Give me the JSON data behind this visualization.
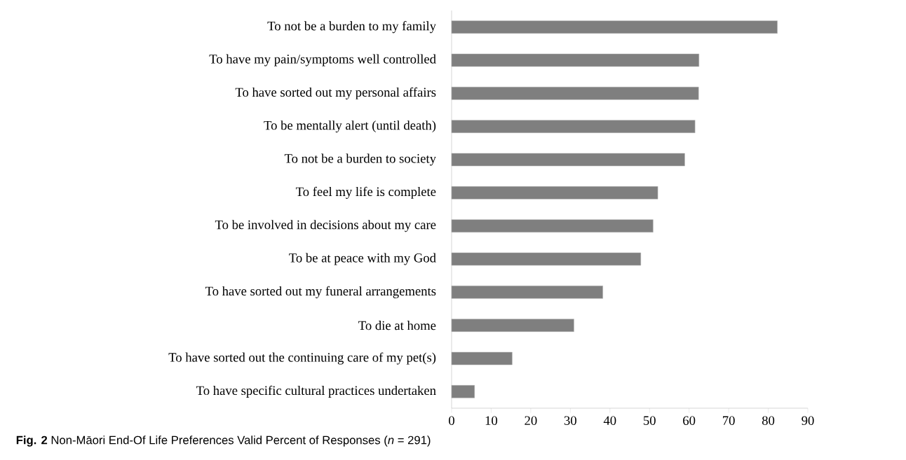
{
  "chart_data": {
    "type": "bar",
    "orientation": "horizontal",
    "title": "**Fig. 2** Non-Māori End-Of Life Preferences Valid Percent of Responses (*n* = 291)",
    "categories": [
      "To not be a burden to my family",
      "To have my pain/symptoms well controlled",
      "To have sorted out my personal affairs",
      "To be mentally alert (until death)",
      "To not be a burden to society",
      "To feel my life is complete",
      "To be involved in decisions about my care",
      "To be at peace with my God",
      "To have sorted out my funeral arrangements",
      "To die at home",
      "To have sorted out the continuing care of my pet(s)",
      "To have specific cultural practices undertaken"
    ],
    "values": [
      82.3,
      62.5,
      62.4,
      61.5,
      58.9,
      52.1,
      50.9,
      47.8,
      38.2,
      30.9,
      15.3,
      5.8
    ],
    "color": "#7f7f7f",
    "xlim": [
      0,
      90
    ],
    "xticks": [
      0,
      10,
      20,
      30,
      40,
      50,
      60,
      70,
      80,
      90
    ]
  }
}
